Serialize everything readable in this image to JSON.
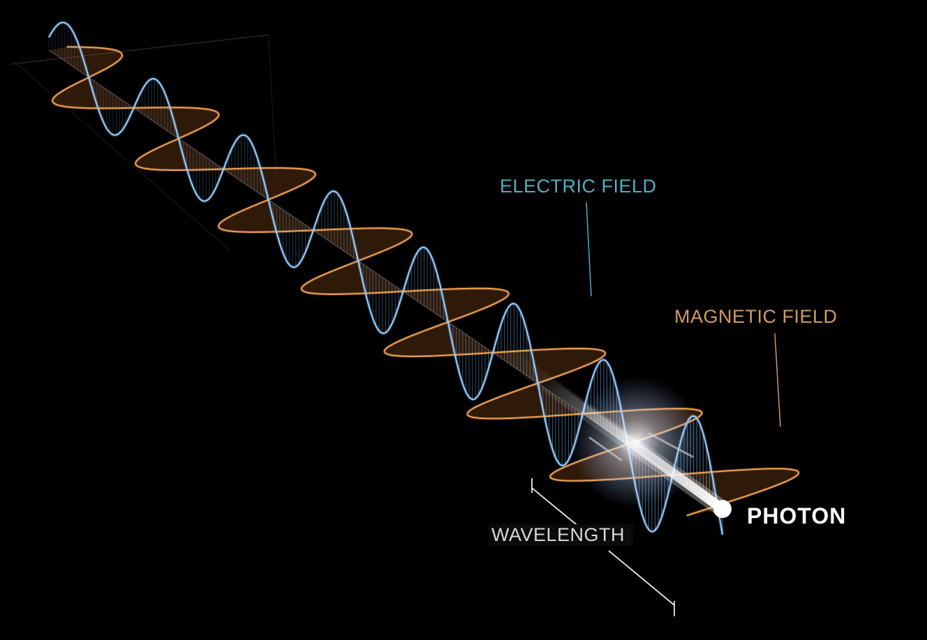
{
  "labels": {
    "electric_field": "ELECTRIC FIELD",
    "magnetic_field": "MAGNETIC FIELD",
    "photon": "PHOTON",
    "wavelength": "WAVELENGTH"
  },
  "colors": {
    "background": "#000000",
    "electric": "#6aaee8",
    "electric_label": "#4eb0c4",
    "magnetic": "#f0a050",
    "magnetic_label": "#d49a60",
    "photon": "#ffffff",
    "wavelength_label": "#d8d8d8",
    "wavelength_line": "#e8e8e8"
  }
}
